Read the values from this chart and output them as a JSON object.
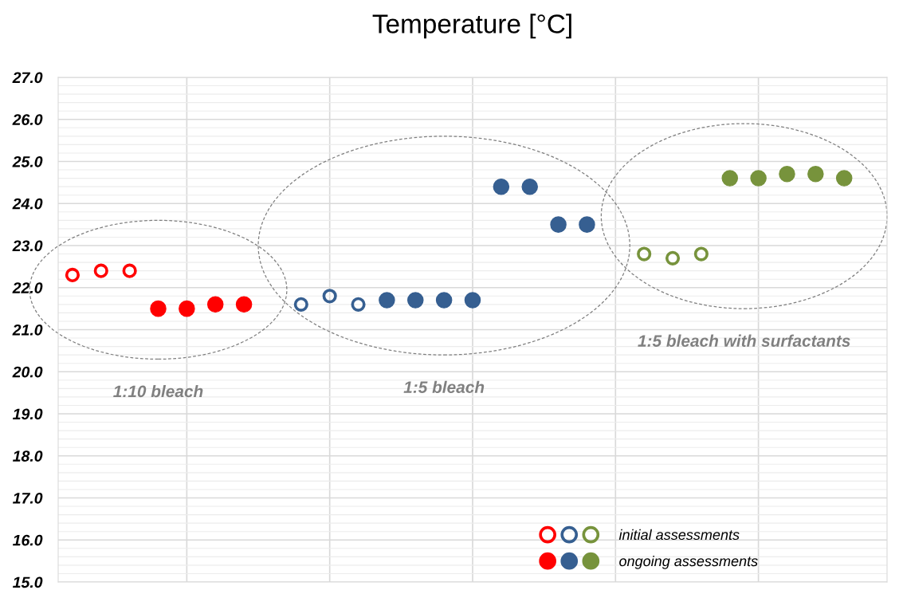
{
  "chart_data": {
    "type": "scatter",
    "title": "Temperature [°C]",
    "categories": [
      null,
      null,
      null,
      null,
      null,
      null,
      null,
      null,
      null,
      null,
      null,
      null,
      null,
      null,
      null,
      null,
      null,
      null,
      null,
      null,
      null,
      null,
      null,
      null,
      null,
      null,
      null,
      null,
      null
    ],
    "ylim": [
      15,
      27
    ],
    "yticks": [
      {
        "value": 15,
        "label": "15.0"
      },
      {
        "value": 16,
        "label": "16.0"
      },
      {
        "value": 17,
        "label": "17.0"
      },
      {
        "value": 18,
        "label": "18.0"
      },
      {
        "value": 19,
        "label": "19.0"
      },
      {
        "value": 20,
        "label": "20.0"
      },
      {
        "value": 21,
        "label": "21.0"
      },
      {
        "value": 22,
        "label": "22.0"
      },
      {
        "value": 23,
        "label": "23.0"
      },
      {
        "value": 24,
        "label": "24.0"
      },
      {
        "value": 25,
        "label": "25.0"
      },
      {
        "value": 26,
        "label": "26.0"
      },
      {
        "value": 27,
        "label": "27.0"
      }
    ],
    "grid": true,
    "legend": "bottom right",
    "marker": "circle",
    "series": [
      {
        "name": "initial assessments",
        "values": [
          22.3,
          22.4,
          22.4,
          null,
          null,
          null,
          null,
          null,
          21.6,
          21.8,
          21.6,
          null,
          null,
          null,
          null,
          null,
          null,
          null,
          null,
          null,
          22.8,
          22.7,
          22.8,
          null,
          null,
          null,
          null,
          null,
          null
        ],
        "colors": [
          "#ff0000",
          "#ff0000",
          "#ff0000",
          null,
          null,
          null,
          null,
          null,
          "#365f91",
          "#365f91",
          "#365f91",
          null,
          null,
          null,
          null,
          null,
          null,
          null,
          null,
          null,
          "#77933c",
          "#77933c",
          "#77933c",
          null,
          null,
          null,
          null,
          null,
          null
        ]
      },
      {
        "name": "ongoing assessments",
        "values": [
          null,
          null,
          null,
          21.5,
          21.5,
          21.6,
          21.6,
          null,
          null,
          null,
          null,
          21.7,
          21.7,
          21.7,
          21.7,
          24.4,
          24.4,
          23.5,
          23.5,
          null,
          null,
          null,
          null,
          24.6,
          24.6,
          24.7,
          24.7,
          24.6,
          null
        ],
        "colors": [
          null,
          null,
          null,
          "#ff0000",
          "#ff0000",
          "#ff0000",
          "#ff0000",
          null,
          null,
          null,
          null,
          "#365f91",
          "#365f91",
          "#365f91",
          "#365f91",
          "#365f91",
          "#365f91",
          "#365f91",
          "#365f91",
          null,
          null,
          null,
          null,
          "#77933c",
          "#77933c",
          "#77933c",
          "#77933c",
          "#77933c",
          null
        ]
      }
    ],
    "annotations": [
      "1:10 bleach",
      "1:5 bleach",
      "1:5 bleach with surfactants"
    ]
  }
}
